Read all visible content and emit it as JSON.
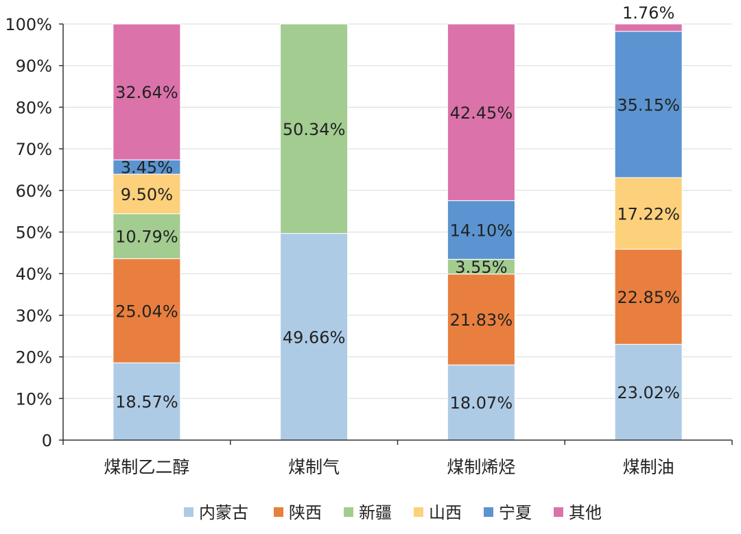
{
  "chart_data": {
    "type": "bar",
    "stacked": true,
    "percent": true,
    "title": "",
    "xlabel": "",
    "ylabel": "",
    "ylim": [
      0,
      100
    ],
    "yticks": [
      "0",
      "10%",
      "20%",
      "30%",
      "40%",
      "50%",
      "60%",
      "70%",
      "80%",
      "90%",
      "100%"
    ],
    "grid": true,
    "legend_position": "bottom",
    "categories": [
      "煤制乙二醇",
      "煤制气",
      "煤制烯烃",
      "煤制油"
    ],
    "series": [
      {
        "name": "内蒙古",
        "color": "#aecbe6",
        "values": [
          18.57,
          49.66,
          18.07,
          23.02
        ],
        "labels": [
          "18.57%",
          "49.66%",
          "18.07%",
          "23.02%"
        ]
      },
      {
        "name": "陕西",
        "color": "#e97f3e",
        "values": [
          25.04,
          0,
          21.83,
          22.85
        ],
        "labels": [
          "25.04%",
          "",
          "21.83%",
          "22.85%"
        ]
      },
      {
        "name": "新疆",
        "color": "#a3cc90",
        "values": [
          10.79,
          50.34,
          3.55,
          0
        ],
        "labels": [
          "10.79%",
          "50.34%",
          "3.55%",
          ""
        ]
      },
      {
        "name": "山西",
        "color": "#fdd07b",
        "values": [
          9.5,
          0,
          0,
          17.22
        ],
        "labels": [
          "9.50%",
          "",
          "",
          "17.22%"
        ]
      },
      {
        "name": "宁夏",
        "color": "#5b94d0",
        "values": [
          3.45,
          0,
          14.1,
          35.15
        ],
        "labels": [
          "3.45%",
          "",
          "14.10%",
          "35.15%"
        ]
      },
      {
        "name": "其他",
        "color": "#dc72aa",
        "values": [
          32.64,
          0,
          42.45,
          1.76
        ],
        "labels": [
          "32.64%",
          "",
          "42.45%",
          "1.76%"
        ]
      }
    ]
  }
}
